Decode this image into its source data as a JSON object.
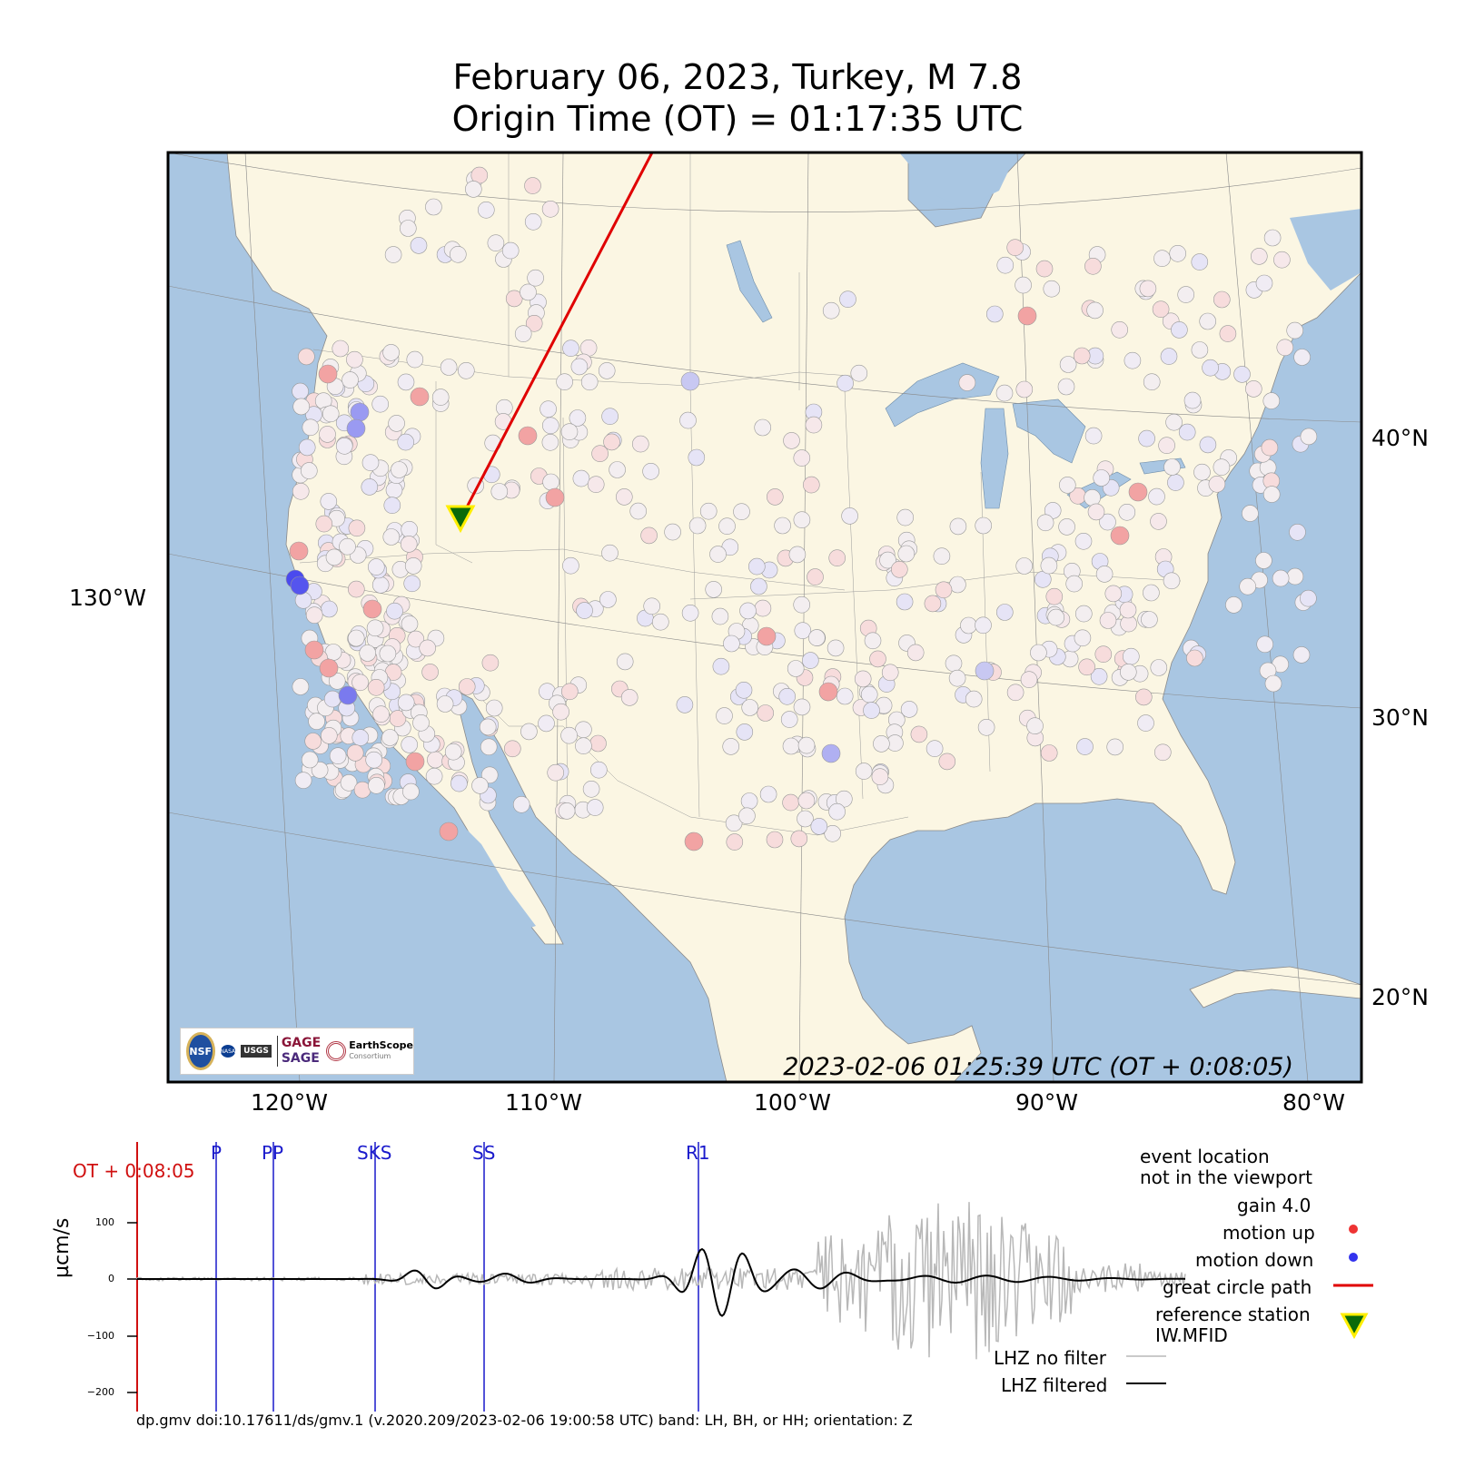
{
  "header": {
    "title_line1": "February 06, 2023, Turkey, M 7.8",
    "title_line2": "Origin Time (OT) = 01:17:35 UTC"
  },
  "map": {
    "timestamp": "2023-02-06 01:25:39 UTC (OT + 0:08:05)",
    "lon_labels": [
      "120°W",
      "110°W",
      "100°W",
      "90°W",
      "80°W"
    ],
    "west_label": "130°W",
    "lat_labels": [
      "40°N",
      "30°N",
      "20°N"
    ],
    "colors": {
      "land": "#fbf6e3",
      "water": "#a9c6e2",
      "path": "#e00000",
      "station_fill": "#f3eef0"
    },
    "logos": {
      "nsf": "NSF",
      "nasa": "NASA",
      "usgs": "USGS",
      "gage": "GAGE",
      "sage": "SAGE",
      "earthscope": "EarthScope",
      "earthscope_sub": "Consortium"
    }
  },
  "seismogram": {
    "ot_label": "OT + 0:08:05",
    "phases": [
      "P",
      "PP",
      "SKS",
      "SS",
      "R1"
    ],
    "ylabel": "µcm/s",
    "yticks": [
      "100",
      "0",
      "−100",
      "−200"
    ]
  },
  "legend": {
    "event_line1": "event location",
    "event_line2": "not in the viewport",
    "gain": "gain  4.0",
    "motion_up": "motion up",
    "motion_down": "motion down",
    "great_circle": "great circle path",
    "reference_station": "reference station",
    "station_code": "IW.MFID",
    "no_filter": "LHZ no filter",
    "filtered": "LHZ filtered",
    "colors": {
      "up": "#ee3333",
      "down": "#3333ee",
      "path": "#e00000",
      "ref_fill": "#0a6a0a",
      "ref_edge": "#ffee00",
      "unfiltered": "#b8b8b8",
      "filtered": "#000000"
    }
  },
  "footer": {
    "text": "dp.gmv doi:10.17611/ds/gmv.1 (v.2020.209/2023-02-06 19:00:58 UTC) band: LH, BH, or HH; orientation: Z"
  }
}
